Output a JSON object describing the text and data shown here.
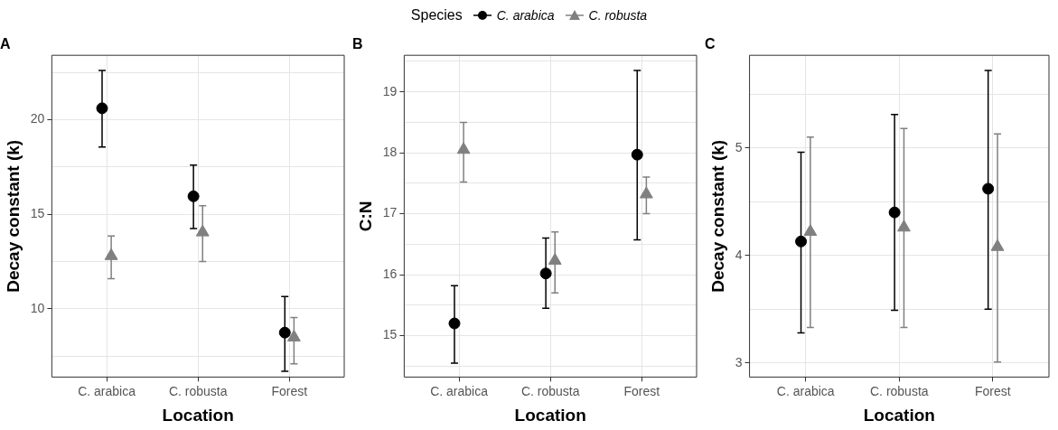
{
  "chart_data": [
    {
      "type": "scatter",
      "title": "A",
      "xlabel": "Location",
      "ylabel": "Decay constant (k)",
      "legend": "top",
      "legend_title": "Species",
      "grid": true,
      "categories": [
        "C. arabica",
        "C. robusta",
        "Forest"
      ],
      "ylim": [
        6.4,
        23.4
      ],
      "yticks": [
        {
          "value": 7.5,
          "label": null
        },
        10,
        {
          "value": 12.5,
          "label": null
        },
        15,
        {
          "value": 17.5,
          "label": null
        },
        20,
        {
          "value": 22.5,
          "label": null
        }
      ],
      "series": [
        {
          "name": "C. arabica",
          "color": "#000000",
          "marker": "circle",
          "values": [
            20.6,
            15.95,
            8.75
          ],
          "errors": [
            [
              18.55,
              22.6
            ],
            [
              14.25,
              17.6
            ],
            [
              6.7,
              10.65
            ]
          ]
        },
        {
          "name": "C. robusta",
          "color": "#808080",
          "marker": "triangle",
          "values": [
            12.8,
            14.05,
            8.5
          ],
          "errors": [
            [
              11.6,
              13.85
            ],
            [
              12.5,
              15.45
            ],
            [
              7.1,
              9.55
            ]
          ]
        }
      ]
    },
    {
      "type": "scatter",
      "title": "B",
      "xlabel": "Location",
      "ylabel": "C:N",
      "grid": true,
      "categories": [
        "C. arabica",
        "C. robusta",
        "Forest"
      ],
      "ylim": [
        14.32,
        19.6
      ],
      "yticks": [
        {
          "value": 14.5,
          "label": null
        },
        15,
        {
          "value": 15.5,
          "label": null
        },
        16,
        {
          "value": 16.5,
          "label": null
        },
        17,
        {
          "value": 17.5,
          "label": null
        },
        18,
        {
          "value": 18.5,
          "label": null
        },
        19,
        {
          "value": 19.5,
          "label": null
        }
      ],
      "series": [
        {
          "color": "#000000",
          "marker": "circle",
          "values": [
            15.2,
            16.02,
            17.97
          ],
          "errors": [
            [
              14.55,
              15.82
            ],
            [
              15.45,
              16.6
            ],
            [
              16.57,
              19.35
            ]
          ]
        },
        {
          "color": "#808080",
          "marker": "triangle",
          "values": [
            18.05,
            16.23,
            17.32
          ],
          "errors": [
            [
              17.52,
              18.5
            ],
            [
              15.7,
              16.7
            ],
            [
              17.0,
              17.6
            ]
          ]
        }
      ]
    },
    {
      "type": "scatter",
      "title": "C",
      "xlabel": "Location",
      "ylabel": "Decay constant (k)",
      "grid": true,
      "categories": [
        "C. arabica",
        "C. robusta",
        "Forest"
      ],
      "ylim": [
        2.87,
        5.86
      ],
      "yticks": [
        3,
        {
          "value": 3.5,
          "label": null
        },
        4,
        {
          "value": 4.5,
          "label": null
        },
        5,
        {
          "value": 5.5,
          "label": null
        }
      ],
      "series": [
        {
          "color": "#000000",
          "marker": "circle",
          "values": [
            4.13,
            4.4,
            4.62
          ],
          "errors": [
            [
              3.28,
              4.96
            ],
            [
              3.49,
              5.31
            ],
            [
              3.5,
              5.72
            ]
          ]
        },
        {
          "color": "#808080",
          "marker": "triangle",
          "values": [
            4.22,
            4.26,
            4.08
          ],
          "errors": [
            [
              3.33,
              5.1
            ],
            [
              3.33,
              5.18
            ],
            [
              3.01,
              5.13
            ]
          ]
        }
      ]
    }
  ]
}
